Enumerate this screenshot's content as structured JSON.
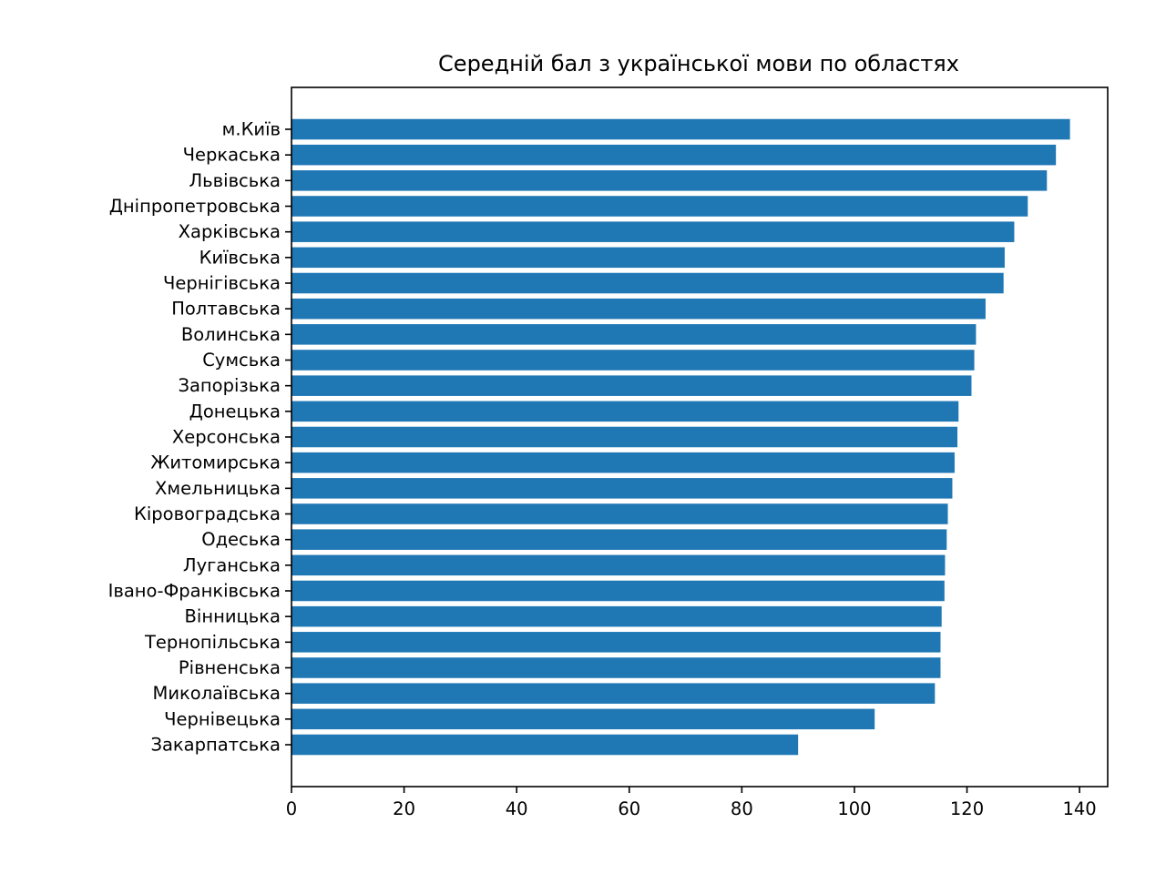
{
  "chart_data": {
    "type": "bar",
    "orientation": "horizontal",
    "title": "Середній бал з української мови по областях",
    "xlabel": "",
    "ylabel": "",
    "xlim": [
      0,
      145
    ],
    "xticks": [
      0,
      20,
      40,
      60,
      80,
      100,
      120,
      140
    ],
    "grid": false,
    "bar_color": "#1f77b4",
    "categories": [
      "м.Київ",
      "Черкаська",
      "Львівська",
      "Дніпропетровська",
      "Харківська",
      "Київська",
      "Чернігівська",
      "Полтавська",
      "Волинська",
      "Сумська",
      "Запорізька",
      "Донецька",
      "Херсонська",
      "Житомирська",
      "Хмельницька",
      "Кіровоградська",
      "Одеська",
      "Луганська",
      "Івано-Франківська",
      "Вінницька",
      "Тернопільська",
      "Рівненська",
      "Миколаївська",
      "Чернівецька",
      "Закарпатська"
    ],
    "values": [
      138.3,
      135.8,
      134.2,
      130.8,
      128.4,
      126.7,
      126.5,
      123.3,
      121.6,
      121.3,
      120.8,
      118.5,
      118.3,
      117.8,
      117.4,
      116.6,
      116.4,
      116.1,
      116.0,
      115.5,
      115.3,
      115.3,
      114.3,
      103.6,
      90.0
    ]
  }
}
